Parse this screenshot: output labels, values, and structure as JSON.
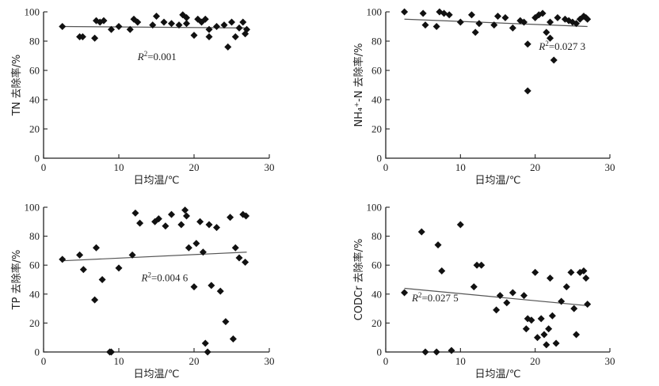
{
  "chart_data": [
    {
      "type": "scatter",
      "xlabel": "日均温/℃",
      "ylabel": "TN 去除率/%",
      "xlim": [
        0,
        30
      ],
      "ylim": [
        0,
        100
      ],
      "xticks": [
        0,
        10,
        20,
        30
      ],
      "yticks": [
        0,
        20,
        40,
        60,
        80,
        100
      ],
      "grid": false,
      "annotation": "R²=0.001",
      "trendline": {
        "x": [
          2.5,
          27
        ],
        "y": [
          90,
          89
        ]
      },
      "points": {
        "x": [
          2.5,
          4.8,
          5.2,
          6.8,
          7.0,
          7.5,
          8.0,
          9.0,
          10.0,
          11.5,
          12.0,
          12.5,
          14.5,
          15.0,
          16.0,
          17.0,
          18.0,
          18.5,
          19.0,
          19.0,
          20.0,
          20.5,
          21.0,
          21.5,
          22.0,
          22.0,
          23.0,
          24.0,
          24.5,
          25.0,
          25.5,
          26.0,
          26.5,
          27.0,
          26.8
        ],
        "y": [
          90,
          83,
          83,
          82,
          94,
          93,
          94,
          88,
          90,
          88,
          95,
          93,
          91,
          97,
          93,
          92,
          91,
          98,
          96,
          92,
          84,
          95,
          93,
          95,
          88,
          83,
          90,
          91,
          76,
          93,
          83,
          89,
          93,
          88,
          85
        ]
      }
    },
    {
      "type": "scatter",
      "xlabel": "日均温/℃",
      "ylabel": "NH₄⁺-N 去除率/%",
      "xlim": [
        0,
        30
      ],
      "ylim": [
        0,
        100
      ],
      "xticks": [
        0,
        10,
        20,
        30
      ],
      "yticks": [
        0,
        20,
        40,
        60,
        80,
        100
      ],
      "grid": false,
      "annotation": "R²=0.027 3",
      "trendline": {
        "x": [
          2.5,
          27
        ],
        "y": [
          95,
          90
        ]
      },
      "points": {
        "x": [
          2.5,
          5.0,
          5.3,
          6.8,
          7.2,
          7.8,
          8.5,
          10.0,
          11.5,
          12.0,
          12.5,
          14.5,
          15.0,
          16.0,
          17.0,
          18.0,
          18.5,
          19.0,
          19.0,
          20.0,
          20.5,
          21.0,
          21.5,
          22.0,
          22.0,
          22.5,
          23.0,
          24.0,
          24.5,
          25.0,
          25.5,
          26.0,
          26.5,
          27.0,
          26.8
        ],
        "y": [
          100,
          99,
          91,
          90,
          100,
          99,
          98,
          93,
          98,
          86,
          92,
          91,
          97,
          96,
          89,
          94,
          93,
          78,
          46,
          96,
          98,
          99,
          86,
          82,
          93,
          67,
          96,
          95,
          94,
          93,
          92,
          95,
          97,
          95,
          96
        ]
      }
    },
    {
      "type": "scatter",
      "xlabel": "日均温/℃",
      "ylabel": "TP 去除率/%",
      "xlim": [
        0,
        30
      ],
      "ylim": [
        0,
        100
      ],
      "xticks": [
        0,
        10,
        20,
        30
      ],
      "yticks": [
        0,
        20,
        40,
        60,
        80,
        100
      ],
      "grid": false,
      "annotation": "R²=0.004 6",
      "trendline": {
        "x": [
          2.5,
          27
        ],
        "y": [
          63,
          69
        ]
      },
      "points": {
        "x": [
          2.5,
          4.8,
          5.3,
          6.8,
          7.0,
          7.8,
          8.8,
          9.0,
          10.0,
          11.8,
          12.2,
          12.8,
          14.8,
          15.3,
          16.2,
          17.0,
          18.3,
          18.8,
          19.0,
          19.3,
          20.0,
          20.3,
          20.8,
          21.2,
          21.5,
          21.8,
          22.0,
          22.3,
          23.0,
          23.5,
          24.2,
          24.8,
          25.2,
          25.5,
          26.0,
          26.5,
          26.8,
          26.9
        ],
        "y": [
          64,
          67,
          57,
          36,
          72,
          50,
          0,
          0,
          58,
          67,
          96,
          89,
          90,
          92,
          87,
          95,
          88,
          98,
          94,
          72,
          45,
          75,
          90,
          69,
          6,
          0,
          88,
          46,
          86,
          42,
          21,
          93,
          9,
          72,
          65,
          95,
          62,
          94
        ]
      }
    },
    {
      "type": "scatter",
      "xlabel": "日均温/℃",
      "ylabel": "CODCr 去除率/%",
      "xlim": [
        0,
        30
      ],
      "ylim": [
        0,
        100
      ],
      "xticks": [
        0,
        10,
        20,
        30
      ],
      "yticks": [
        0,
        20,
        40,
        60,
        80,
        100
      ],
      "grid": false,
      "annotation": "R²=0.027 5",
      "trendline": {
        "x": [
          2.5,
          27
        ],
        "y": [
          44,
          32
        ]
      },
      "points": {
        "x": [
          2.5,
          4.8,
          5.3,
          6.8,
          7.0,
          7.5,
          8.8,
          10.0,
          11.8,
          12.2,
          12.8,
          14.8,
          15.3,
          16.2,
          17.0,
          18.5,
          18.8,
          19.0,
          19.5,
          20.0,
          20.3,
          20.8,
          21.2,
          21.5,
          21.8,
          22.0,
          22.3,
          22.8,
          23.5,
          24.2,
          24.8,
          25.2,
          25.5,
          26.0,
          26.5,
          26.8,
          27.0
        ],
        "y": [
          41,
          83,
          0,
          0,
          74,
          56,
          1,
          88,
          45,
          60,
          60,
          29,
          39,
          34,
          41,
          39,
          16,
          23,
          22,
          55,
          10,
          23,
          12,
          5,
          16,
          51,
          25,
          6,
          35,
          45,
          55,
          30,
          12,
          55,
          56,
          51,
          33
        ]
      }
    }
  ]
}
